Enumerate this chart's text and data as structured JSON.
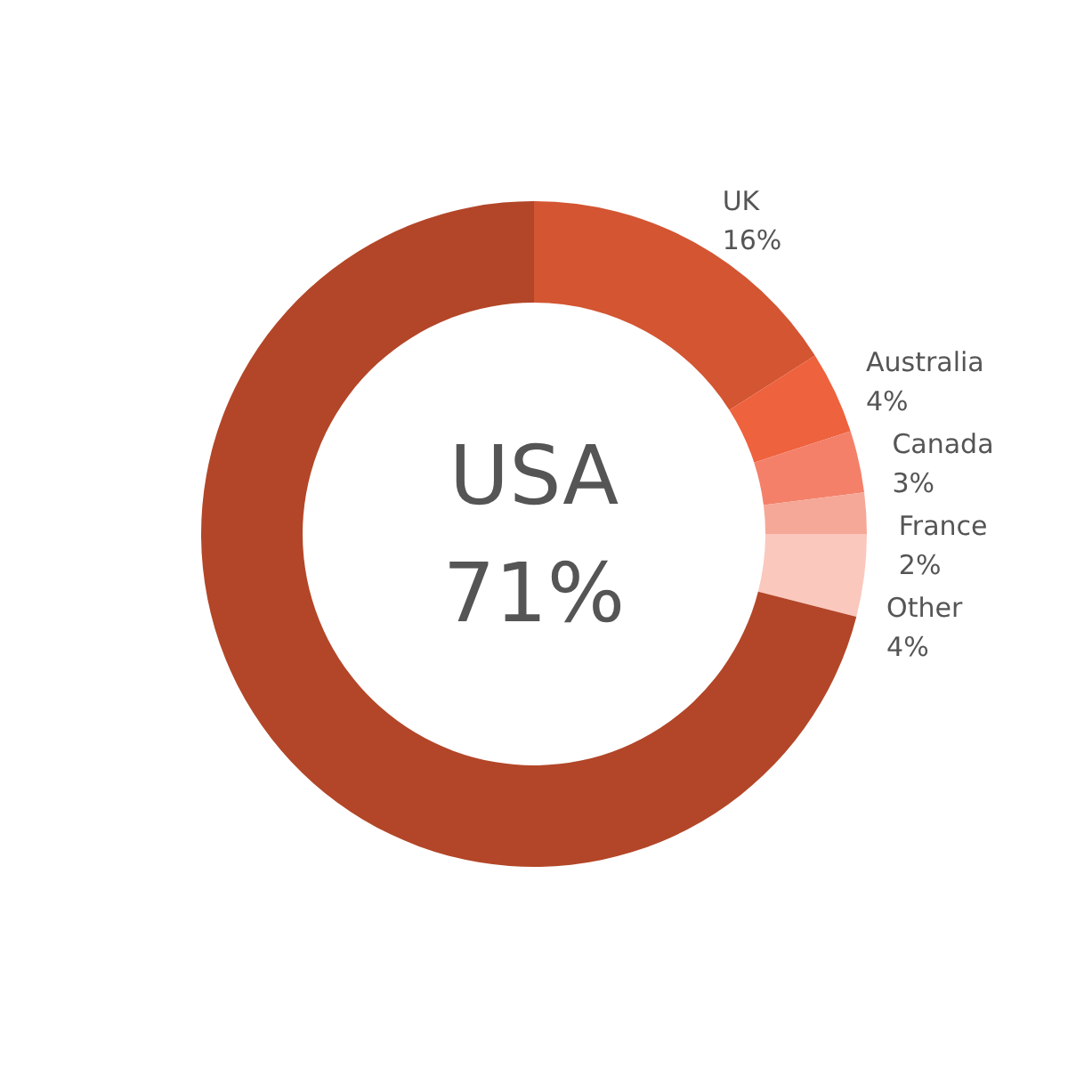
{
  "chart_data": {
    "type": "donut",
    "categories": [
      "UK",
      "Australia",
      "Canada",
      "France",
      "Other",
      "USA"
    ],
    "values": [
      16,
      4,
      3,
      2,
      4,
      71
    ],
    "value_labels": [
      "16%",
      "4%",
      "3%",
      "2%",
      "4%",
      "71%"
    ],
    "colors": [
      "#d35532",
      "#ee623e",
      "#f4806a",
      "#f6a898",
      "#fbc8be",
      "#b34628"
    ]
  }
}
